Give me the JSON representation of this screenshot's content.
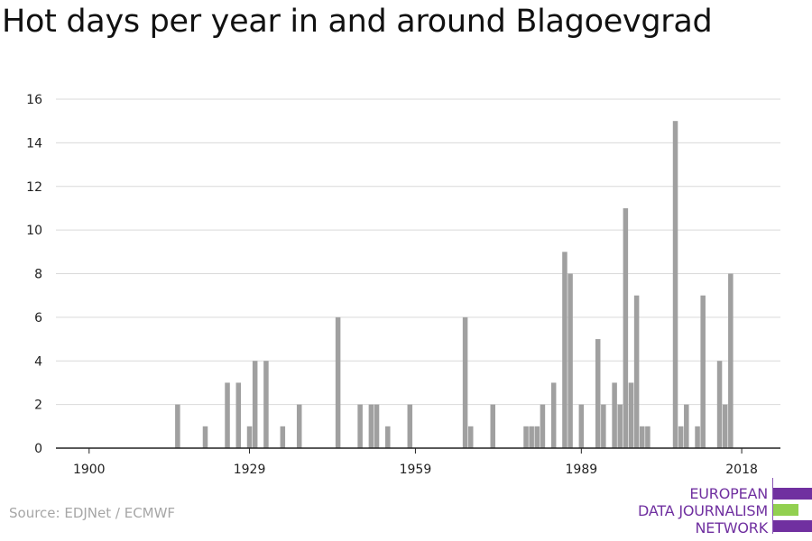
{
  "title": "Hot days per year in and around Blagoevgrad",
  "source": "Source: EDJNet / ECMWF",
  "logo": {
    "line1": "EUROPEAN",
    "line2": "DATA JOURNALISM",
    "line3": "NETWORK",
    "color_purple": "#7030a0",
    "color_green": "#92d050"
  },
  "chart_data": {
    "type": "bar",
    "title": "Hot days per year in and around Blagoevgrad",
    "xlabel": "",
    "ylabel": "",
    "xlim": [
      1894,
      2025
    ],
    "ylim": [
      0,
      16
    ],
    "yticks": [
      0,
      2,
      4,
      6,
      8,
      10,
      12,
      14,
      16
    ],
    "xticks": [
      1900,
      1929,
      1959,
      1989,
      2018
    ],
    "grid": true,
    "bar_color": "#a0a0a0",
    "x": [
      1916,
      1921,
      1925,
      1927,
      1929,
      1930,
      1932,
      1935,
      1938,
      1945,
      1949,
      1951,
      1952,
      1954,
      1958,
      1968,
      1969,
      1973,
      1979,
      1980,
      1981,
      1982,
      1984,
      1986,
      1987,
      1989,
      1992,
      1993,
      1995,
      1996,
      1997,
      1998,
      1999,
      2000,
      2001,
      2006,
      2007,
      2008,
      2010,
      2011,
      2014,
      2015,
      2016
    ],
    "values": [
      2,
      1,
      3,
      3,
      1,
      4,
      4,
      1,
      2,
      6,
      2,
      2,
      2,
      1,
      2,
      6,
      1,
      2,
      1,
      1,
      1,
      2,
      3,
      9,
      8,
      2,
      5,
      2,
      3,
      2,
      11,
      3,
      7,
      1,
      1,
      15,
      1,
      2,
      1,
      7,
      4,
      2,
      8
    ]
  }
}
